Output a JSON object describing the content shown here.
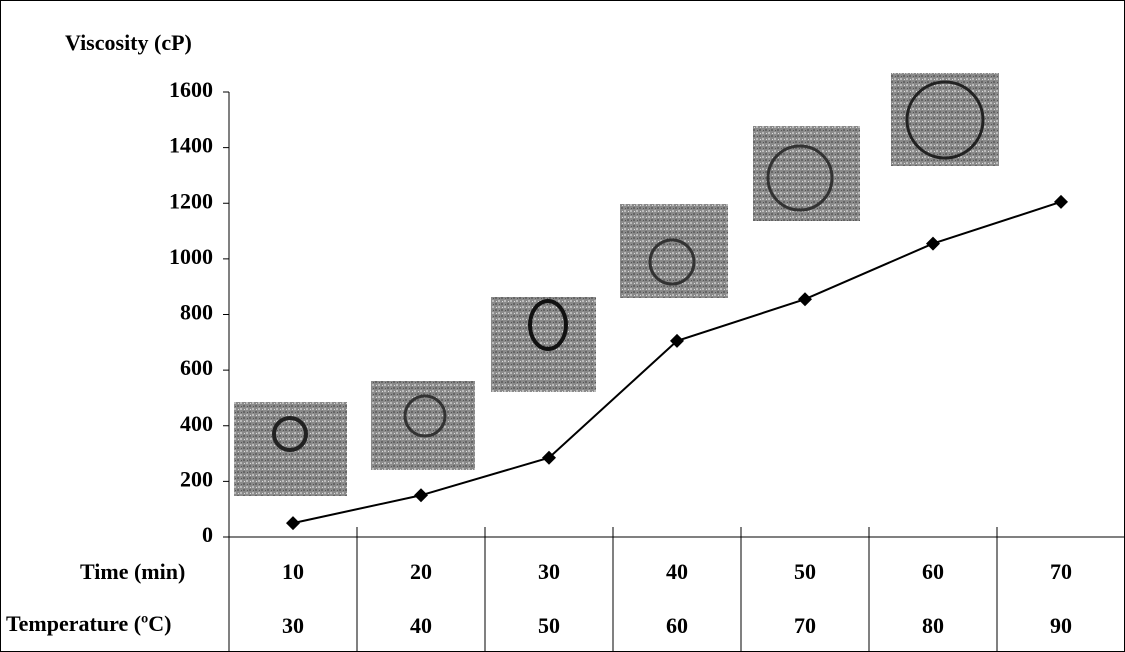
{
  "chart_data": {
    "type": "line",
    "y_label": "Viscosity (cP)",
    "x_label": "Time (min)",
    "categories": [
      "10",
      "20",
      "30",
      "40",
      "50",
      "60",
      "70"
    ],
    "x2_label": "Temperature (ºC)",
    "categories2": [
      "30",
      "40",
      "50",
      "60",
      "70",
      "80",
      "90"
    ],
    "values": [
      50,
      150,
      285,
      705,
      855,
      1055,
      1205
    ],
    "color": "#000000",
    "ylim": [
      0,
      1600
    ],
    "yticks": [
      0,
      200,
      400,
      600,
      800,
      1000,
      1200,
      1400,
      1600
    ],
    "grid": false
  }
}
